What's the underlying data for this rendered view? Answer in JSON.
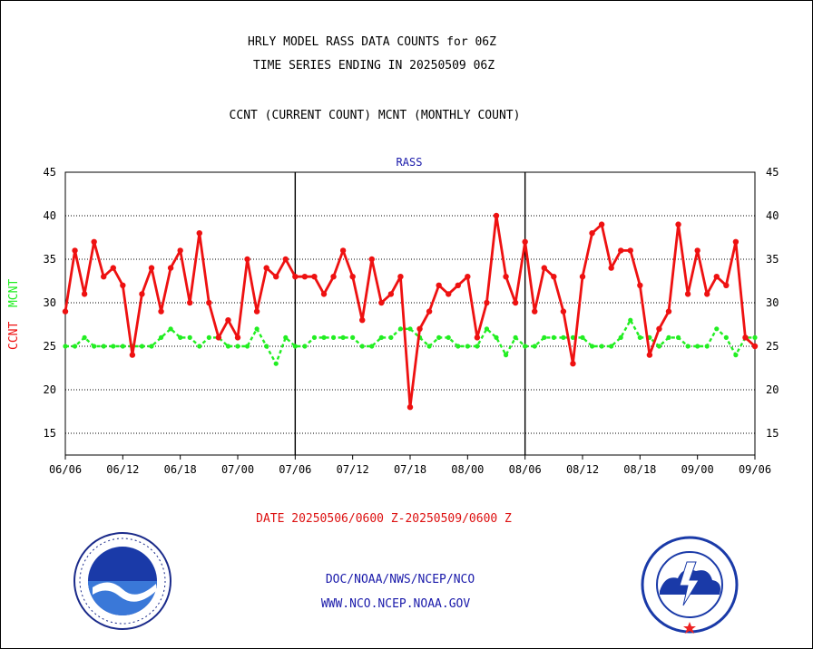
{
  "title_line1": "HRLY MODEL RASS DATA COUNTS for 06Z",
  "title_line2": "TIME SERIES ENDING IN 20250509 06Z",
  "subtitle": "CCNT (CURRENT COUNT) MCNT (MONTHLY COUNT)",
  "panel_label": "RASS",
  "date_range": "DATE 20250506/0600 Z-20250509/0600 Z",
  "footer_line1": "DOC/NOAA/NWS/NCEP/NCO",
  "footer_line2": "WWW.NCO.NCEP.NOAA.GOV",
  "ylabel_ccnt": "CCNT",
  "ylabel_mcnt": "MCNT",
  "colors": {
    "ccnt": "#ee1111",
    "mcnt": "#22ee22",
    "title": "#000000",
    "date": "#dd1111",
    "footer": "#1a1aaa"
  },
  "chart_data": {
    "type": "line",
    "ylim": [
      12.5,
      45
    ],
    "yticks": [
      15,
      20,
      25,
      30,
      35,
      40,
      45
    ],
    "xtick_labels": [
      "06/06",
      "06/12",
      "06/18",
      "07/00",
      "07/06",
      "07/12",
      "07/18",
      "08/00",
      "08/06",
      "08/12",
      "08/18",
      "09/00",
      "09/06"
    ],
    "n_points": 73,
    "grid": true,
    "series": [
      {
        "name": "CCNT",
        "values": [
          29,
          36,
          31,
          37,
          33,
          34,
          32,
          24,
          31,
          34,
          29,
          34,
          36,
          30,
          38,
          30,
          26,
          28,
          26,
          35,
          29,
          34,
          33,
          35,
          33,
          33,
          33,
          31,
          33,
          36,
          33,
          28,
          35,
          30,
          31,
          33,
          18,
          27,
          29,
          32,
          31,
          32,
          33,
          26,
          30,
          40,
          33,
          30,
          37,
          29,
          34,
          33,
          29,
          23,
          33,
          38,
          39,
          34,
          36,
          36,
          32,
          24,
          27,
          29,
          39,
          31,
          36,
          31,
          33,
          32,
          37,
          26,
          25
        ]
      },
      {
        "name": "MCNT",
        "values": [
          25,
          25,
          26,
          25,
          25,
          25,
          25,
          25,
          25,
          25,
          26,
          27,
          26,
          26,
          25,
          26,
          26,
          25,
          25,
          25,
          27,
          25,
          23,
          26,
          25,
          25,
          26,
          26,
          26,
          26,
          26,
          25,
          25,
          26,
          26,
          27,
          27,
          26,
          25,
          26,
          26,
          25,
          25,
          25,
          27,
          26,
          24,
          26,
          25,
          25,
          26,
          26,
          26,
          26,
          26,
          25,
          25,
          25,
          26,
          28,
          26,
          26,
          25,
          26,
          26,
          25,
          25,
          25,
          27,
          26,
          24,
          26,
          26
        ]
      }
    ]
  }
}
